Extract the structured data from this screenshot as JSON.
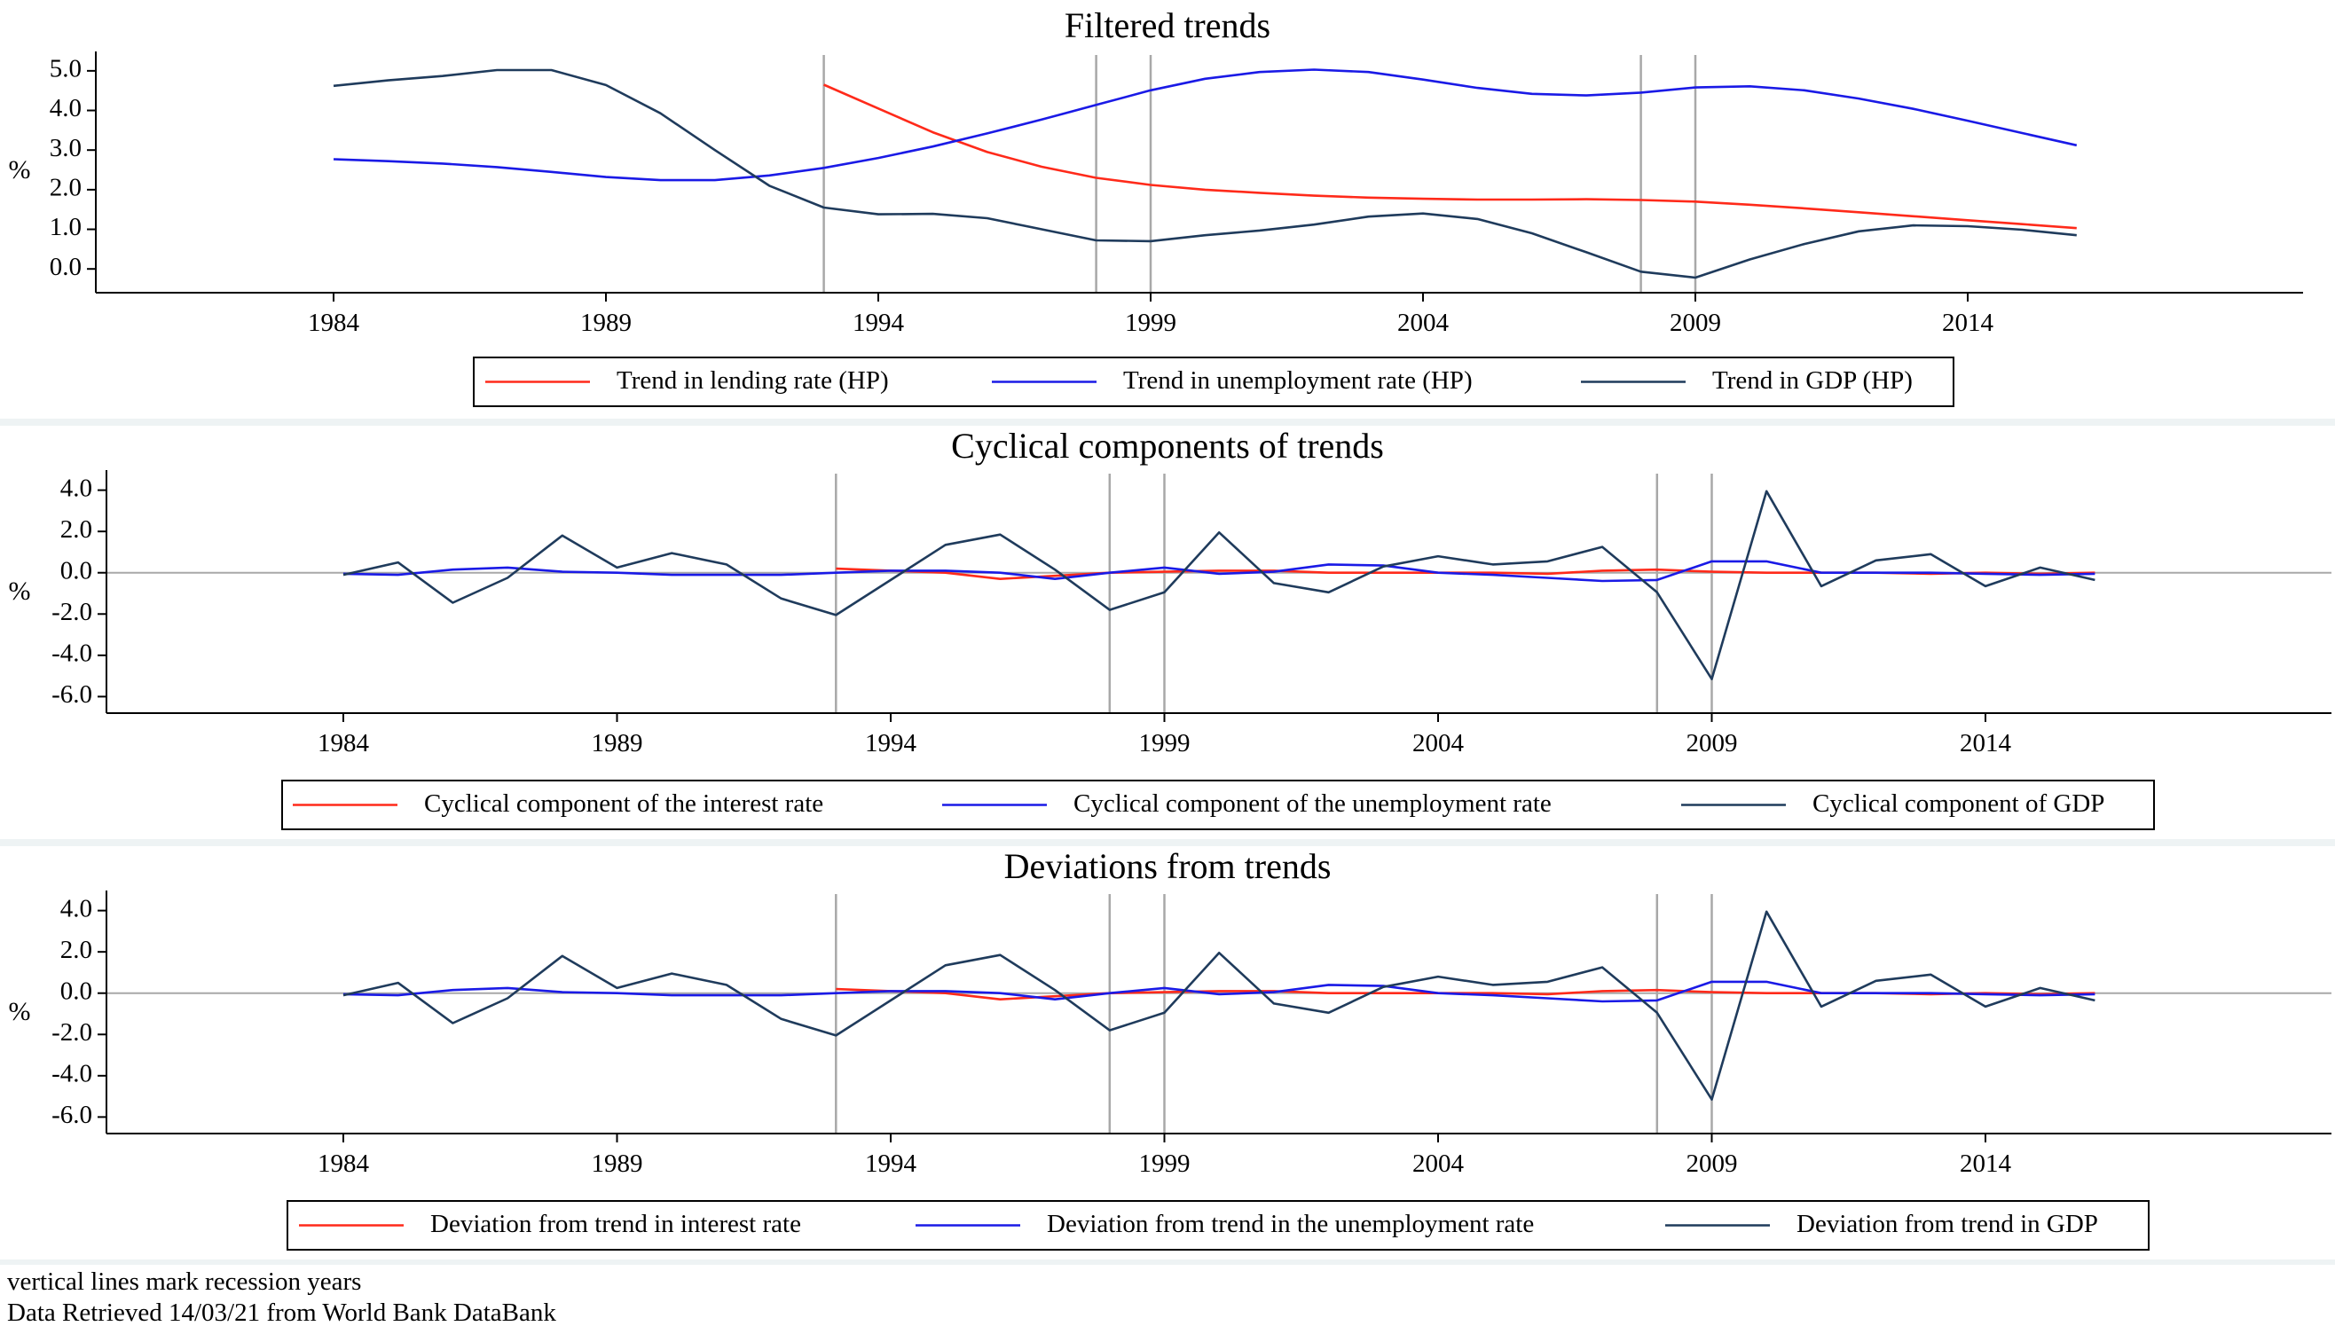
{
  "colors": {
    "lending": "#ff2a1a",
    "unemployment": "#1a1ae6",
    "gdp": "#1f3b5c",
    "recession_line": "#a8a8a8",
    "separator": "#eef3f4"
  },
  "notes": [
    "vertical lines mark recession years",
    "Data Retrieved 14/03/21 from World Bank DataBank"
  ],
  "chart_data": [
    {
      "type": "line",
      "title": "Filtered trends",
      "ylabel": "%",
      "xlabel": "",
      "xlim": [
        1980,
        2023
      ],
      "ylim": [
        -0.6,
        5.4
      ],
      "xticks": [
        1984,
        1989,
        1994,
        1999,
        2004,
        2009,
        2014
      ],
      "yticks": [
        0.0,
        1.0,
        2.0,
        3.0,
        4.0,
        5.0
      ],
      "zero_line": false,
      "recession_years": [
        1993,
        1998,
        1999,
        2008,
        2009
      ],
      "legend_position": "bottom",
      "series": [
        {
          "name": "Trend in lending rate (HP)",
          "color_key": "lending",
          "x": [
            1993,
            1994,
            1995,
            1996,
            1997,
            1998,
            1999,
            2000,
            2001,
            2002,
            2003,
            2004,
            2005,
            2006,
            2007,
            2008,
            2009,
            2010,
            2011,
            2012,
            2013,
            2014,
            2015,
            2016
          ],
          "values": [
            4.65,
            4.05,
            3.45,
            2.95,
            2.58,
            2.3,
            2.12,
            2.0,
            1.92,
            1.85,
            1.8,
            1.77,
            1.75,
            1.75,
            1.76,
            1.74,
            1.7,
            1.62,
            1.53,
            1.43,
            1.33,
            1.23,
            1.13,
            1.03
          ]
        },
        {
          "name": "Trend in unemployment rate (HP)",
          "color_key": "unemployment",
          "x": [
            1984,
            1985,
            1986,
            1987,
            1988,
            1989,
            1990,
            1991,
            1992,
            1993,
            1994,
            1995,
            1996,
            1997,
            1998,
            1999,
            2000,
            2001,
            2002,
            2003,
            2004,
            2005,
            2006,
            2007,
            2008,
            2009,
            2010,
            2011,
            2012,
            2013,
            2014,
            2015,
            2016
          ],
          "values": [
            2.77,
            2.72,
            2.66,
            2.57,
            2.45,
            2.32,
            2.24,
            2.24,
            2.36,
            2.55,
            2.8,
            3.09,
            3.42,
            3.77,
            4.14,
            4.51,
            4.8,
            4.97,
            5.03,
            4.97,
            4.78,
            4.57,
            4.42,
            4.38,
            4.45,
            4.58,
            4.61,
            4.51,
            4.3,
            4.04,
            3.74,
            3.43,
            3.12
          ]
        },
        {
          "name": "Trend in GDP (HP)",
          "color_key": "gdp",
          "x": [
            1984,
            1985,
            1986,
            1987,
            1988,
            1989,
            1990,
            1991,
            1992,
            1993,
            1994,
            1995,
            1996,
            1997,
            1998,
            1999,
            2000,
            2001,
            2002,
            2003,
            2004,
            2005,
            2006,
            2007,
            2008,
            2009,
            2010,
            2011,
            2012,
            2013,
            2014,
            2015,
            2016
          ],
          "values": [
            4.62,
            4.76,
            4.87,
            5.02,
            5.02,
            4.64,
            3.93,
            3.0,
            2.1,
            1.55,
            1.38,
            1.39,
            1.28,
            1.0,
            0.72,
            0.7,
            0.85,
            0.97,
            1.12,
            1.32,
            1.4,
            1.26,
            0.9,
            0.42,
            -0.07,
            -0.22,
            0.24,
            0.63,
            0.95,
            1.1,
            1.08,
            0.99,
            0.85
          ]
        }
      ]
    },
    {
      "type": "line",
      "title": "Cyclical components of trends",
      "ylabel": "%",
      "xlabel": "",
      "xlim": [
        1980,
        2023
      ],
      "ylim": [
        -6.8,
        4.8
      ],
      "xticks": [
        1984,
        1989,
        1994,
        1999,
        2004,
        2009,
        2014
      ],
      "yticks": [
        4.0,
        2.0,
        0.0,
        -2.0,
        -4.0,
        -6.0
      ],
      "zero_line": true,
      "recession_years": [
        1993,
        1998,
        1999,
        2008,
        2009
      ],
      "legend_position": "bottom",
      "series": [
        {
          "name": "Cyclical component of the interest rate",
          "color_key": "lending",
          "x": [
            1993,
            1994,
            1995,
            1996,
            1997,
            1998,
            1999,
            2000,
            2001,
            2002,
            2003,
            2004,
            2005,
            2006,
            2007,
            2008,
            2009,
            2010,
            2011,
            2012,
            2013,
            2014,
            2015,
            2016
          ],
          "values": [
            0.2,
            0.1,
            0.0,
            -0.3,
            -0.15,
            0.0,
            0.05,
            0.1,
            0.1,
            0.0,
            0.0,
            0.0,
            0.0,
            -0.05,
            0.1,
            0.15,
            0.05,
            0.0,
            0.0,
            0.0,
            -0.05,
            0.0,
            -0.05,
            0.0
          ]
        },
        {
          "name": "Cyclical component of the unemployment rate",
          "color_key": "unemployment",
          "x": [
            1984,
            1985,
            1986,
            1987,
            1988,
            1989,
            1990,
            1991,
            1992,
            1993,
            1994,
            1995,
            1996,
            1997,
            1998,
            1999,
            2000,
            2001,
            2002,
            2003,
            2004,
            2005,
            2006,
            2007,
            2008,
            2009,
            2010,
            2011,
            2012,
            2013,
            2014,
            2015,
            2016
          ],
          "values": [
            -0.05,
            -0.1,
            0.15,
            0.25,
            0.05,
            0.0,
            -0.1,
            -0.1,
            -0.1,
            0.0,
            0.1,
            0.1,
            0.0,
            -0.3,
            0.0,
            0.25,
            -0.05,
            0.05,
            0.4,
            0.35,
            0.0,
            -0.1,
            -0.25,
            -0.4,
            -0.35,
            0.55,
            0.55,
            0.0,
            0.0,
            0.0,
            -0.05,
            -0.1,
            -0.05
          ]
        },
        {
          "name": "Cyclical component of GDP",
          "color_key": "gdp",
          "x": [
            1984,
            1985,
            1986,
            1987,
            1988,
            1989,
            1990,
            1991,
            1992,
            1993,
            1994,
            1995,
            1996,
            1997,
            1998,
            1999,
            2000,
            2001,
            2002,
            2003,
            2004,
            2005,
            2006,
            2007,
            2008,
            2009,
            2010,
            2011,
            2012,
            2013,
            2014,
            2015,
            2016
          ],
          "values": [
            -0.1,
            0.5,
            -1.45,
            -0.25,
            1.8,
            0.25,
            0.95,
            0.4,
            -1.25,
            -2.05,
            -0.35,
            1.35,
            1.85,
            0.15,
            -1.8,
            -0.95,
            1.95,
            -0.5,
            -0.95,
            0.3,
            0.8,
            0.4,
            0.55,
            1.25,
            -0.95,
            -5.15,
            3.95,
            -0.65,
            0.6,
            0.9,
            -0.65,
            0.25,
            -0.35
          ]
        }
      ]
    },
    {
      "type": "line",
      "title": "Deviations from trends",
      "ylabel": "%",
      "xlabel": "",
      "xlim": [
        1980,
        2023
      ],
      "ylim": [
        -6.8,
        4.8
      ],
      "xticks": [
        1984,
        1989,
        1994,
        1999,
        2004,
        2009,
        2014
      ],
      "yticks": [
        4.0,
        2.0,
        0.0,
        -2.0,
        -4.0,
        -6.0
      ],
      "zero_line": true,
      "recession_years": [
        1993,
        1998,
        1999,
        2008,
        2009
      ],
      "legend_position": "bottom",
      "series": [
        {
          "name": "Deviation from trend in interest rate",
          "color_key": "lending",
          "x": [
            1993,
            1994,
            1995,
            1996,
            1997,
            1998,
            1999,
            2000,
            2001,
            2002,
            2003,
            2004,
            2005,
            2006,
            2007,
            2008,
            2009,
            2010,
            2011,
            2012,
            2013,
            2014,
            2015,
            2016
          ],
          "values": [
            0.2,
            0.1,
            0.0,
            -0.3,
            -0.15,
            0.0,
            0.05,
            0.1,
            0.1,
            0.0,
            0.0,
            0.0,
            0.0,
            -0.05,
            0.1,
            0.15,
            0.05,
            0.0,
            0.0,
            0.0,
            -0.05,
            0.0,
            -0.05,
            0.0
          ]
        },
        {
          "name": "Deviation from trend in the unemployment rate",
          "color_key": "unemployment",
          "x": [
            1984,
            1985,
            1986,
            1987,
            1988,
            1989,
            1990,
            1991,
            1992,
            1993,
            1994,
            1995,
            1996,
            1997,
            1998,
            1999,
            2000,
            2001,
            2002,
            2003,
            2004,
            2005,
            2006,
            2007,
            2008,
            2009,
            2010,
            2011,
            2012,
            2013,
            2014,
            2015,
            2016
          ],
          "values": [
            -0.05,
            -0.1,
            0.15,
            0.25,
            0.05,
            0.0,
            -0.1,
            -0.1,
            -0.1,
            0.0,
            0.1,
            0.1,
            0.0,
            -0.3,
            0.0,
            0.25,
            -0.05,
            0.05,
            0.4,
            0.35,
            0.0,
            -0.1,
            -0.25,
            -0.4,
            -0.35,
            0.55,
            0.55,
            0.0,
            0.0,
            0.0,
            -0.05,
            -0.1,
            -0.05
          ]
        },
        {
          "name": "Deviation from trend in GDP",
          "color_key": "gdp",
          "x": [
            1984,
            1985,
            1986,
            1987,
            1988,
            1989,
            1990,
            1991,
            1992,
            1993,
            1994,
            1995,
            1996,
            1997,
            1998,
            1999,
            2000,
            2001,
            2002,
            2003,
            2004,
            2005,
            2006,
            2007,
            2008,
            2009,
            2010,
            2011,
            2012,
            2013,
            2014,
            2015,
            2016
          ],
          "values": [
            -0.1,
            0.5,
            -1.45,
            -0.25,
            1.8,
            0.25,
            0.95,
            0.4,
            -1.25,
            -2.05,
            -0.35,
            1.35,
            1.85,
            0.15,
            -1.8,
            -0.95,
            1.95,
            -0.5,
            -0.95,
            0.3,
            0.8,
            0.4,
            0.55,
            1.25,
            -0.95,
            -5.15,
            3.95,
            -0.65,
            0.6,
            0.9,
            -0.65,
            0.25,
            -0.35
          ]
        }
      ]
    }
  ]
}
